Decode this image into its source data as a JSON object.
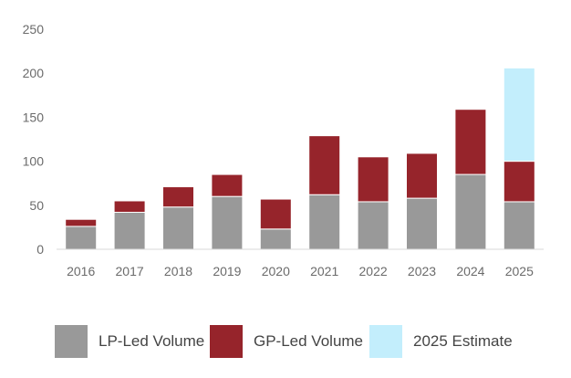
{
  "chart_data": {
    "type": "bar",
    "stacked": true,
    "categories": [
      "2016",
      "2017",
      "2018",
      "2019",
      "2020",
      "2021",
      "2022",
      "2023",
      "2024",
      "2025"
    ],
    "series": [
      {
        "name": "LP-Led Volume",
        "color": "#999999",
        "values": [
          26,
          42,
          48,
          60,
          23,
          62,
          54,
          58,
          85,
          54
        ]
      },
      {
        "name": "GP-Led Volume",
        "color": "#96242b",
        "values": [
          8,
          13,
          23,
          25,
          34,
          67,
          51,
          51,
          74,
          46
        ]
      },
      {
        "name": "2025 Estimate",
        "color": "#c3eefc",
        "values": [
          0,
          0,
          0,
          0,
          0,
          0,
          0,
          0,
          0,
          106
        ]
      }
    ],
    "title": "",
    "xlabel": "",
    "ylabel": "",
    "ylim": [
      0,
      250
    ],
    "yticks": [
      0,
      50,
      100,
      150,
      200,
      250
    ],
    "grid": false,
    "legend_position": "bottom"
  }
}
